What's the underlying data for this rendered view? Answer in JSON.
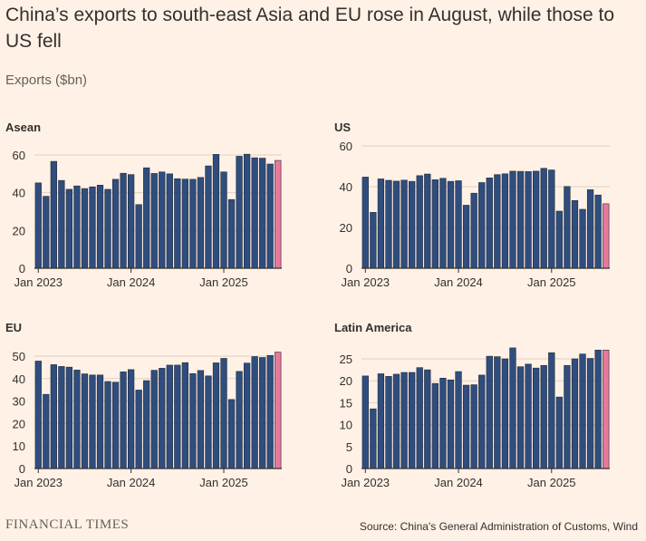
{
  "title": "China’s exports to south-east Asia and EU rose in August, while those to US fell",
  "subtitle": "Exports ($bn)",
  "footer": {
    "brand": "FINANCIAL TIMES",
    "source": "Source: China's General Administration of Customs, Wind"
  },
  "colors": {
    "background": "#fff1e5",
    "bar": "#2f4d7e",
    "highlight": "#e8799c",
    "grid": "#e2cfc3",
    "axis": "#33302e"
  },
  "chart_data": [
    {
      "type": "bar",
      "title": "Asean",
      "xlabel": "",
      "ylabel": "Exports ($bn)",
      "ylim": [
        0,
        60
      ],
      "yticks": [
        "0",
        "20",
        "40",
        "60"
      ],
      "xtick_labels": [
        "Jan 2023",
        "Jan 2024",
        "Jan 2025"
      ],
      "xtick_indices": [
        0,
        12,
        24
      ],
      "highlight_last": true,
      "values": [
        45.2,
        38.1,
        56.6,
        46.5,
        41.8,
        43.6,
        42.2,
        43.1,
        44.0,
        41.8,
        47.1,
        50.3,
        49.6,
        33.7,
        53.2,
        50.2,
        51.0,
        50.0,
        47.4,
        47.2,
        47.1,
        48.1,
        54.2,
        60.3,
        51.0,
        36.4,
        59.3,
        60.4,
        58.5,
        58.3,
        55.2,
        57.1
      ]
    },
    {
      "type": "bar",
      "title": "US",
      "xlabel": "",
      "ylabel": "Exports ($bn)",
      "ylim": [
        0,
        60
      ],
      "yticks": [
        "0",
        "20",
        "40",
        "60"
      ],
      "xtick_labels": [
        "Jan 2023",
        "Jan 2024",
        "Jan 2025"
      ],
      "xtick_indices": [
        0,
        12,
        24
      ],
      "highlight_last": true,
      "values": [
        44.7,
        27.4,
        43.8,
        43.1,
        42.7,
        43.2,
        42.6,
        45.4,
        46.2,
        43.4,
        44.1,
        42.6,
        42.9,
        30.9,
        36.8,
        42.0,
        44.3,
        45.9,
        46.3,
        47.6,
        47.5,
        47.4,
        47.6,
        49.0,
        48.2,
        28.0,
        40.1,
        33.2,
        28.9,
        38.5,
        35.9,
        31.6
      ]
    },
    {
      "type": "bar",
      "title": "EU",
      "xlabel": "",
      "ylabel": "Exports ($bn)",
      "ylim": [
        0,
        50
      ],
      "yticks": [
        "0",
        "10",
        "20",
        "30",
        "40",
        "50"
      ],
      "xtick_labels": [
        "Jan 2023",
        "Jan 2024",
        "Jan 2025"
      ],
      "xtick_indices": [
        0,
        12,
        24
      ],
      "highlight_last": true,
      "values": [
        47.8,
        33.0,
        46.2,
        45.4,
        45.1,
        43.8,
        42.1,
        41.6,
        41.6,
        38.7,
        38.4,
        43.0,
        44.0,
        34.9,
        39.1,
        43.7,
        44.6,
        46.0,
        46.0,
        47.1,
        42.2,
        43.6,
        41.2,
        47.0,
        49.0,
        30.7,
        43.2,
        46.9,
        49.8,
        49.4,
        50.3,
        51.8
      ]
    },
    {
      "type": "bar",
      "title": "Latin America",
      "xlabel": "",
      "ylabel": "Exports ($bn)",
      "ylim": [
        0,
        25
      ],
      "yticks": [
        "0",
        "5",
        "10",
        "15",
        "20",
        "25"
      ],
      "xtick_labels": [
        "Jan 2023",
        "Jan 2024",
        "Jan 2025"
      ],
      "xtick_indices": [
        0,
        12,
        24
      ],
      "highlight_last": true,
      "values": [
        21.1,
        13.6,
        21.6,
        21.0,
        21.5,
        21.9,
        21.9,
        23.0,
        22.5,
        19.4,
        20.6,
        20.2,
        22.1,
        19.0,
        19.1,
        21.3,
        25.6,
        25.5,
        25.0,
        27.5,
        23.2,
        23.8,
        22.9,
        23.5,
        26.4,
        16.3,
        23.5,
        25.0,
        26.1,
        25.1,
        27.0,
        27.0
      ]
    }
  ]
}
